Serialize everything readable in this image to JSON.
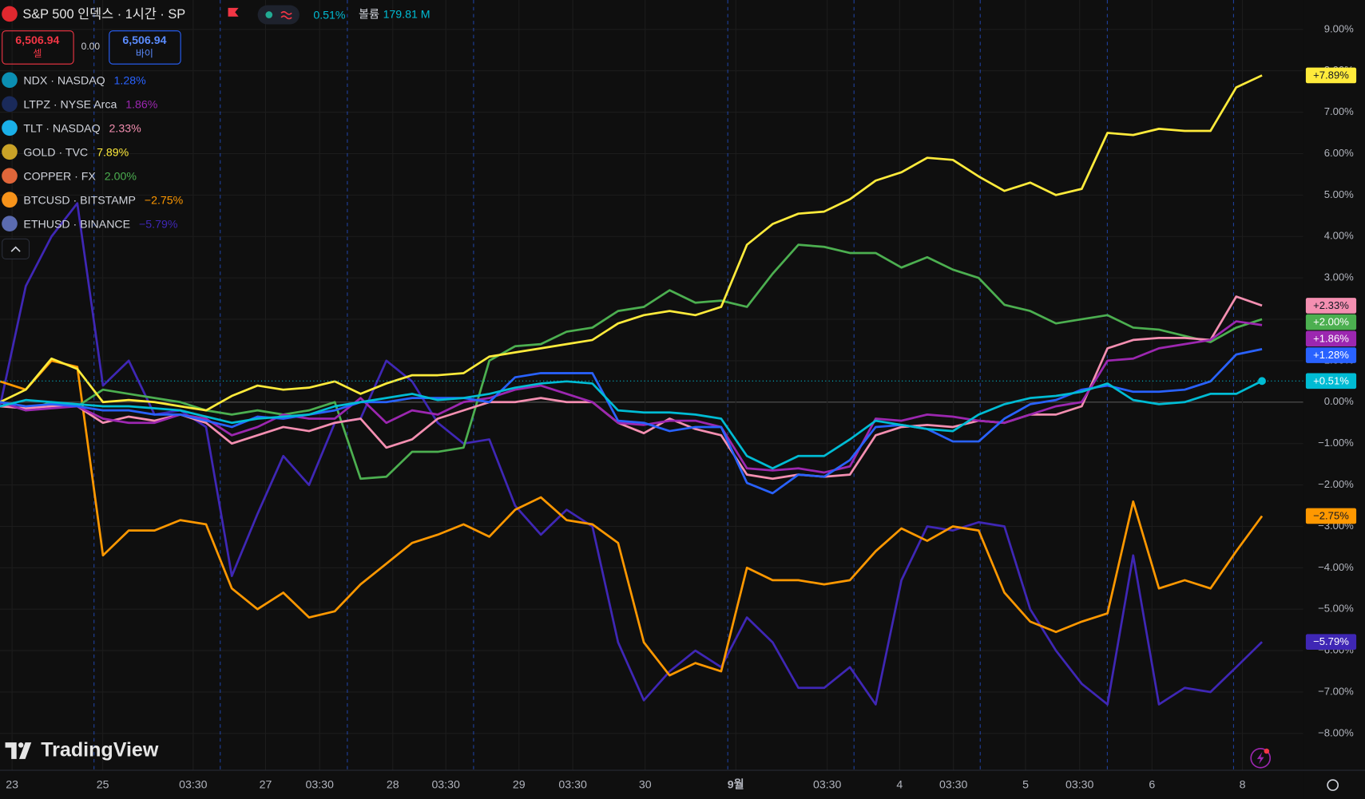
{
  "chart_data": {
    "type": "line",
    "title": "S&P 500 인덱스 · 1시간 · SP",
    "header_change": "0.51%",
    "volume_label": "볼륨",
    "volume_value": "179.81 M",
    "sell_price": "6,506.94",
    "sell_label": "셀",
    "spread": "0.00",
    "buy_price": "6,506.94",
    "buy_label": "바이",
    "brand": "TradingView",
    "x": [
      0,
      1,
      2,
      3,
      4,
      5,
      6,
      7,
      8,
      9,
      10,
      11,
      12,
      13,
      14,
      15,
      16,
      17,
      18,
      19,
      20,
      21,
      22,
      23,
      24,
      25,
      26,
      27,
      28,
      29,
      30,
      31,
      32,
      33,
      34,
      35,
      36,
      37,
      38,
      39,
      40,
      41,
      42,
      43,
      44,
      45,
      46,
      47,
      48,
      49
    ],
    "xlim": [
      0,
      50.6
    ],
    "xticks": [
      {
        "value": 0.47,
        "label": "23"
      },
      {
        "value": 3.99,
        "label": "25"
      },
      {
        "value": 7.5,
        "label": "03:30"
      },
      {
        "value": 10.31,
        "label": "27"
      },
      {
        "value": 12.41,
        "label": "03:30"
      },
      {
        "value": 15.25,
        "label": "28"
      },
      {
        "value": 17.31,
        "label": "03:30"
      },
      {
        "value": 20.15,
        "label": "29"
      },
      {
        "value": 22.24,
        "label": "03:30"
      },
      {
        "value": 25.05,
        "label": "30"
      },
      {
        "value": 28.57,
        "label": "9월"
      },
      {
        "value": 32.12,
        "label": "03:30"
      },
      {
        "value": 34.93,
        "label": "4"
      },
      {
        "value": 37.02,
        "label": "03:30"
      },
      {
        "value": 39.82,
        "label": "5"
      },
      {
        "value": 41.92,
        "label": "03:30"
      },
      {
        "value": 44.73,
        "label": "6"
      },
      {
        "value": 48.24,
        "label": "8"
      }
    ],
    "ylim": [
      -8.89,
      9.71
    ],
    "yticks": [
      {
        "value": 9,
        "label": "9.00%"
      },
      {
        "value": 8,
        "label": "8.00%"
      },
      {
        "value": 7,
        "label": "7.00%"
      },
      {
        "value": 6,
        "label": "6.00%"
      },
      {
        "value": 5,
        "label": "5.00%"
      },
      {
        "value": 4,
        "label": "4.00%"
      },
      {
        "value": 3,
        "label": "3.00%"
      },
      {
        "value": 2,
        "label": "2.00%"
      },
      {
        "value": 1,
        "label": "1.00%"
      },
      {
        "value": 0,
        "label": "0.00%"
      },
      {
        "value": -1,
        "label": "−1.00%"
      },
      {
        "value": -2,
        "label": "−2.00%"
      },
      {
        "value": -3,
        "label": "−3.00%"
      },
      {
        "value": -4,
        "label": "−4.00%"
      },
      {
        "value": -5,
        "label": "−5.00%"
      },
      {
        "value": -6,
        "label": "−6.00%"
      },
      {
        "value": -7,
        "label": "−7.00%"
      },
      {
        "value": -8,
        "label": "−8.00%"
      }
    ],
    "grid": true,
    "series": [
      {
        "name": "NDX · NASDAQ",
        "legend_value": "1.28%",
        "end_label": "+1.28%",
        "color": "#2962ff",
        "icon_color": "#0b8fb3",
        "values": [
          0,
          -0.1,
          -0.05,
          -0.1,
          -0.2,
          -0.2,
          -0.3,
          -0.3,
          -0.45,
          -0.6,
          -0.35,
          -0.4,
          -0.3,
          -0.2,
          0,
          0,
          0.1,
          0.1,
          0.1,
          0,
          0.6,
          0.7,
          0.7,
          0.7,
          -0.45,
          -0.5,
          -0.7,
          -0.6,
          -0.6,
          -1.95,
          -2.2,
          -1.75,
          -1.8,
          -1.4,
          -0.6,
          -0.55,
          -0.65,
          -0.95,
          -0.95,
          -0.4,
          -0.05,
          0.05,
          0.3,
          0.4,
          0.25,
          0.25,
          0.3,
          0.5,
          1.15,
          1.28
        ]
      },
      {
        "name": "LTPZ · NYSE Arca",
        "legend_value": "1.86%",
        "end_label": "+1.86%",
        "color": "#9c27b0",
        "icon_color": "#1a2a5a",
        "values": [
          0,
          -0.2,
          -0.15,
          -0.1,
          -0.4,
          -0.5,
          -0.5,
          -0.3,
          -0.4,
          -0.8,
          -0.6,
          -0.3,
          -0.4,
          -0.4,
          0.1,
          -0.5,
          -0.2,
          -0.3,
          0,
          0.1,
          0.3,
          0.4,
          0.2,
          0,
          -0.5,
          -0.55,
          -0.45,
          -0.45,
          -0.6,
          -1.6,
          -1.65,
          -1.6,
          -1.7,
          -1.55,
          -0.4,
          -0.45,
          -0.3,
          -0.35,
          -0.45,
          -0.5,
          -0.3,
          -0.1,
          0,
          1,
          1.05,
          1.3,
          1.4,
          1.5,
          1.95,
          1.86
        ]
      },
      {
        "name": "TLT · NASDAQ",
        "legend_value": "2.33%",
        "end_label": "+2.33%",
        "color": "#f48fb1",
        "icon_color": "#1ab0e8",
        "values": [
          -0.1,
          -0.15,
          -0.1,
          -0.1,
          -0.5,
          -0.35,
          -0.45,
          -0.3,
          -0.5,
          -1,
          -0.8,
          -0.6,
          -0.7,
          -0.5,
          -0.4,
          -1.1,
          -0.9,
          -0.4,
          -0.2,
          0,
          0,
          0.1,
          0,
          0,
          -0.5,
          -0.75,
          -0.4,
          -0.65,
          -0.8,
          -1.75,
          -1.85,
          -1.75,
          -1.8,
          -1.75,
          -0.8,
          -0.6,
          -0.55,
          -0.6,
          -0.45,
          -0.5,
          -0.3,
          -0.3,
          -0.1,
          1.3,
          1.5,
          1.55,
          1.55,
          1.5,
          2.55,
          2.33
        ]
      },
      {
        "name": "GOLD · TVC",
        "legend_value": "7.89%",
        "end_label": "+7.89%",
        "color": "#ffeb3b",
        "icon_color": "#c9a227",
        "values": [
          0,
          0.3,
          1.05,
          0.8,
          0,
          0.05,
          0,
          -0.1,
          -0.2,
          0.15,
          0.4,
          0.3,
          0.35,
          0.5,
          0.2,
          0.45,
          0.65,
          0.65,
          0.7,
          1.1,
          1.2,
          1.3,
          1.4,
          1.5,
          1.9,
          2.1,
          2.2,
          2.1,
          2.3,
          3.8,
          4.3,
          4.55,
          4.6,
          4.9,
          5.35,
          5.55,
          5.9,
          5.85,
          5.45,
          5.1,
          5.3,
          5,
          5.15,
          6.5,
          6.45,
          6.6,
          6.55,
          6.55,
          7.6,
          7.89
        ]
      },
      {
        "name": "COPPER · FX",
        "legend_value": "2.00%",
        "end_label": "+2.00%",
        "color": "#4caf50",
        "icon_color": "#e0663a",
        "values": [
          0,
          -0.2,
          0,
          -0.1,
          0.3,
          0.2,
          0.1,
          0,
          -0.2,
          -0.3,
          -0.2,
          -0.3,
          -0.2,
          0,
          -1.85,
          -1.8,
          -1.2,
          -1.2,
          -1.1,
          1,
          1.35,
          1.4,
          1.7,
          1.8,
          2.2,
          2.3,
          2.7,
          2.4,
          2.45,
          2.3,
          3.1,
          3.8,
          3.75,
          3.6,
          3.6,
          3.25,
          3.5,
          3.2,
          3,
          2.35,
          2.2,
          1.9,
          2,
          2.1,
          1.8,
          1.75,
          1.6,
          1.45,
          1.8,
          2
        ]
      },
      {
        "name": "BTCUSD · BITSTAMP",
        "legend_value": "−2.75%",
        "end_label": "−2.75%",
        "color": "#ff9800",
        "icon_color": "#f7931a",
        "values": [
          0.5,
          0.3,
          1,
          0.85,
          -3.7,
          -3.1,
          -3.1,
          -2.85,
          -2.95,
          -4.5,
          -5,
          -4.6,
          -5.2,
          -5.05,
          -4.4,
          -3.9,
          -3.4,
          -3.2,
          -2.95,
          -3.25,
          -2.6,
          -2.3,
          -2.85,
          -2.95,
          -3.4,
          -5.8,
          -6.6,
          -6.3,
          -6.5,
          -4,
          -4.3,
          -4.3,
          -4.4,
          -4.3,
          -3.6,
          -3.05,
          -3.35,
          -3,
          -3.1,
          -4.6,
          -5.3,
          -5.55,
          -5.3,
          -5.1,
          -2.4,
          -4.5,
          -4.3,
          -4.5,
          -3.6,
          -2.75
        ]
      },
      {
        "name": "ETHUSD · BINANCE",
        "legend_value": "−5.79%",
        "end_label": "−5.79%",
        "color": "#3f27b5",
        "icon_color": "#5b6bb0",
        "values": [
          -0.1,
          2.8,
          4,
          4.8,
          0.4,
          1,
          -0.3,
          -0.2,
          -0.6,
          -4.2,
          -2.7,
          -1.3,
          -2,
          -0.5,
          -0.4,
          1,
          0.5,
          -0.5,
          -1,
          -0.9,
          -2.5,
          -3.2,
          -2.6,
          -3,
          -5.8,
          -7.2,
          -6.5,
          -6,
          -6.4,
          -5.2,
          -5.8,
          -6.9,
          -6.9,
          -6.4,
          -7.3,
          -4.3,
          -3,
          -3.1,
          -2.9,
          -3,
          -5,
          -6,
          -6.8,
          -7.3,
          -3.7,
          -7.3,
          -6.9,
          -7,
          -6.4,
          -5.79
        ]
      },
      {
        "legend_value": "0.51%",
        "end_label": "+0.51%",
        "color": "#00bcd4",
        "values": [
          -0.1,
          0.05,
          0,
          -0.05,
          -0.1,
          -0.1,
          -0.15,
          -0.2,
          -0.35,
          -0.5,
          -0.4,
          -0.35,
          -0.3,
          -0.1,
          0,
          0.1,
          0.2,
          0.05,
          0.1,
          0.2,
          0.35,
          0.45,
          0.5,
          0.45,
          -0.2,
          -0.25,
          -0.25,
          -0.3,
          -0.4,
          -1.3,
          -1.6,
          -1.3,
          -1.3,
          -0.9,
          -0.45,
          -0.55,
          -0.65,
          -0.7,
          -0.3,
          -0.05,
          0.1,
          0.15,
          0.25,
          0.45,
          0.05,
          -0.05,
          0,
          0.2,
          0.2,
          0.51
        ]
      }
    ]
  }
}
